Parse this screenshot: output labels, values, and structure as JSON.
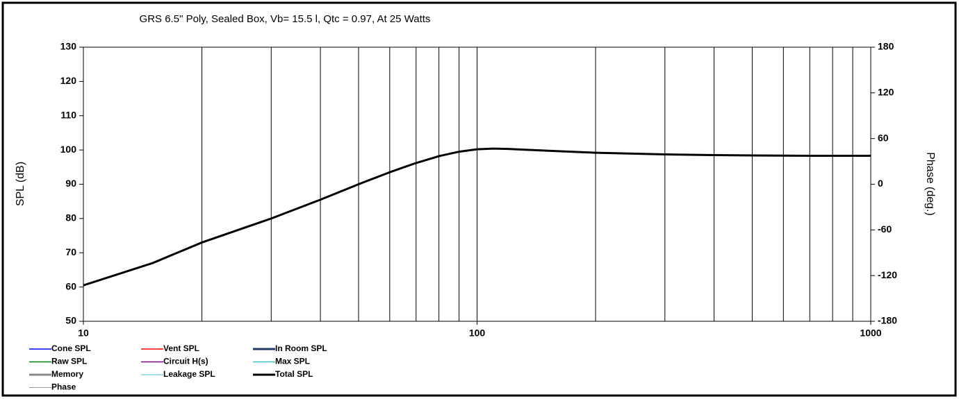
{
  "chart_data": {
    "type": "line",
    "title": "GRS 6.5\" Poly,  Sealed Box, Vb= 15.5 l,  Qtc = 0.97,  At 25 Watts",
    "ylabel": "SPL (dB)",
    "y2label": "Phase (deg.)",
    "log_x": true,
    "xlim": [
      10,
      1000
    ],
    "xticks": [
      10,
      100,
      1000
    ],
    "xminor": [
      20,
      30,
      40,
      50,
      60,
      70,
      80,
      90,
      200,
      300,
      400,
      500,
      600,
      700,
      800,
      900
    ],
    "ylim": [
      50,
      130
    ],
    "yticks": [
      50,
      60,
      70,
      80,
      90,
      100,
      110,
      120,
      130
    ],
    "y2lim": [
      -180,
      180
    ],
    "y2ticks": [
      -180,
      -120,
      -60,
      0,
      60,
      120,
      180
    ],
    "x": [
      10,
      15,
      20,
      30,
      40,
      50,
      60,
      70,
      80,
      90,
      100,
      110,
      120,
      150,
      200,
      300,
      400,
      500,
      700,
      1000
    ],
    "series": [
      {
        "name": "Cone SPL",
        "color": "#0000ff",
        "width": 1.5,
        "values": [
          60.5,
          67,
          73,
          80,
          85.5,
          90,
          93.5,
          96.2,
          98.2,
          99.5,
          100.2,
          100.4,
          100.3,
          99.8,
          99.2,
          98.7,
          98.5,
          98.4,
          98.3,
          98.3
        ]
      },
      {
        "name": "Vent SPL",
        "color": "#ff0000",
        "width": 1.5
      },
      {
        "name": "In Room SPL",
        "color": "#1f3864",
        "width": 3
      },
      {
        "name": "Raw SPL",
        "color": "#008000",
        "width": 1.5
      },
      {
        "name": "Circuit H(s)",
        "color": "#800080",
        "width": 1.5
      },
      {
        "name": "Max SPL",
        "color": "#40c0c0",
        "width": 1.5
      },
      {
        "name": "Memory",
        "color": "#888888",
        "width": 3
      },
      {
        "name": "Leakage SPL",
        "color": "#80d0e0",
        "width": 1.5
      },
      {
        "name": "Total SPL",
        "color": "#000000",
        "width": 3,
        "values": [
          60.5,
          67,
          73,
          80,
          85.5,
          90,
          93.5,
          96.2,
          98.2,
          99.5,
          100.2,
          100.4,
          100.3,
          99.8,
          99.2,
          98.7,
          98.5,
          98.4,
          98.3,
          98.3
        ]
      },
      {
        "name": "Phase",
        "color": "#999999",
        "width": 1
      }
    ]
  }
}
